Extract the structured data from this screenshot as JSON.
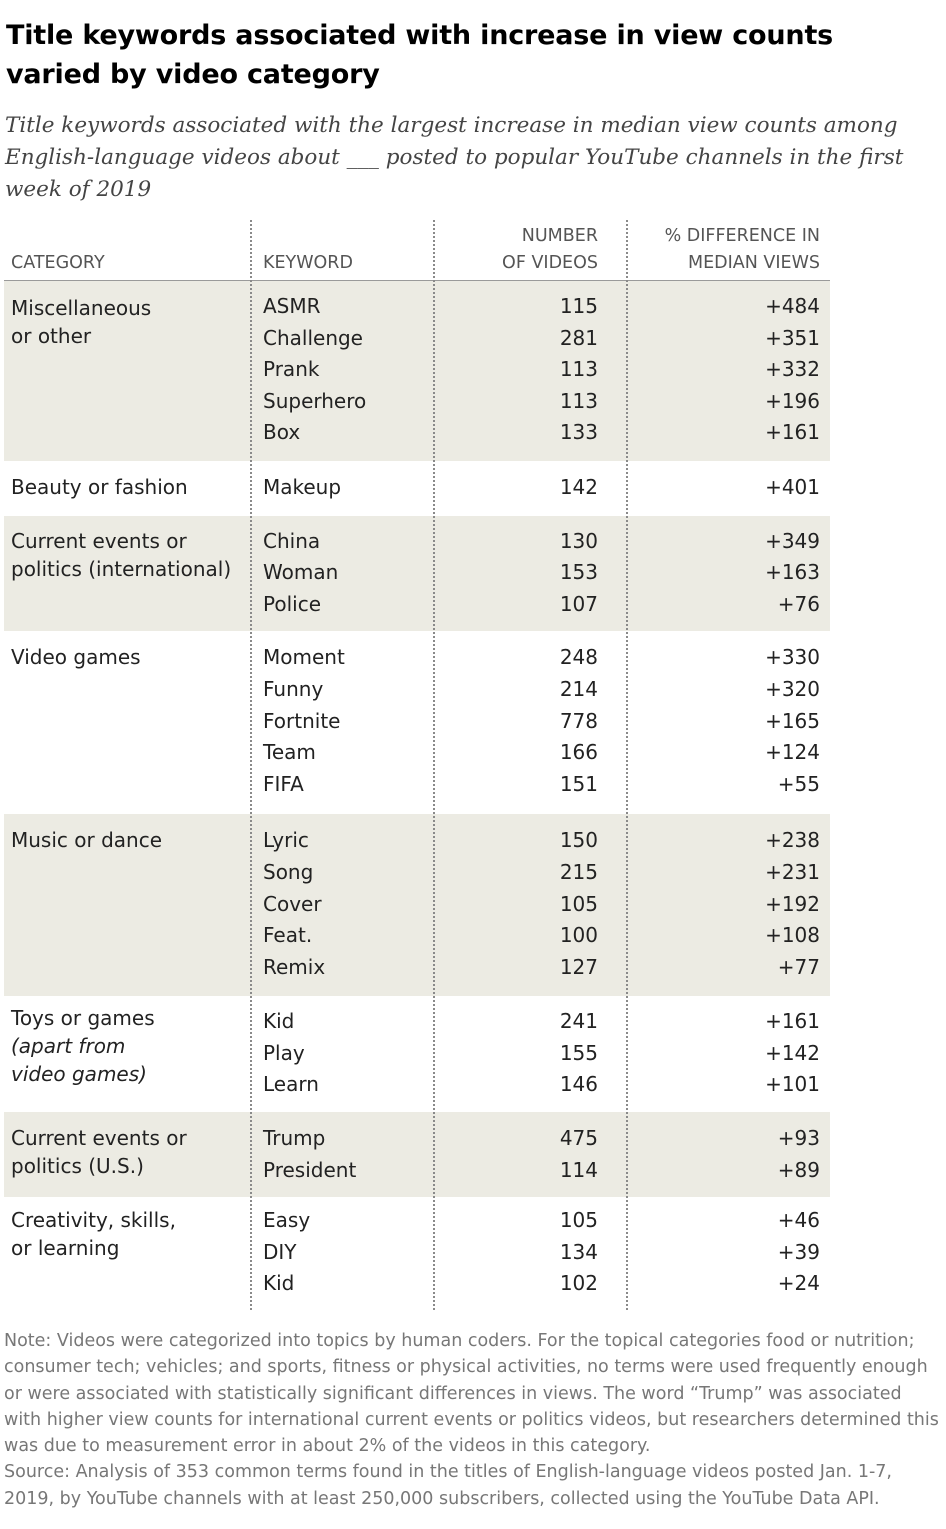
{
  "title": "Title keywords associated with increase in view counts varied by video category",
  "subtitle": "Title keywords associated with the largest increase in median view counts among English-language videos about ___ posted to popular YouTube channels in the first week of 2019",
  "headers": {
    "category": "CATEGORY",
    "keyword": "KEYWORD",
    "num_line1": "NUMBER",
    "num_line2": "OF VIDEOS",
    "diff_line1": "% DIFFERENCE IN",
    "diff_line2": "MEDIAN VIEWS"
  },
  "chart_data": {
    "type": "table",
    "columns": [
      "CATEGORY",
      "KEYWORD",
      "NUMBER OF VIDEOS",
      "% DIFFERENCE IN MEDIAN VIEWS"
    ],
    "groups": [
      {
        "category": [
          "Miscellaneous",
          "or other"
        ],
        "italic": [],
        "shaded": true,
        "rows": [
          {
            "keyword": "ASMR",
            "videos": "115",
            "diff": "+484"
          },
          {
            "keyword": "Challenge",
            "videos": "281",
            "diff": "+351"
          },
          {
            "keyword": "Prank",
            "videos": "113",
            "diff": "+332"
          },
          {
            "keyword": "Superhero",
            "videos": "113",
            "diff": "+196"
          },
          {
            "keyword": "Box",
            "videos": "133",
            "diff": "+161"
          }
        ]
      },
      {
        "category": [
          "Beauty or fashion"
        ],
        "italic": [],
        "shaded": false,
        "rows": [
          {
            "keyword": "Makeup",
            "videos": "142",
            "diff": "+401"
          }
        ]
      },
      {
        "category": [
          "Current events or",
          "politics (international)"
        ],
        "italic": [],
        "shaded": true,
        "rows": [
          {
            "keyword": "China",
            "videos": "130",
            "diff": "+349"
          },
          {
            "keyword": "Woman",
            "videos": "153",
            "diff": "+163"
          },
          {
            "keyword": "Police",
            "videos": "107",
            "diff": "+76"
          }
        ]
      },
      {
        "category": [
          "Video games"
        ],
        "italic": [],
        "shaded": false,
        "rows": [
          {
            "keyword": "Moment",
            "videos": "248",
            "diff": "+330"
          },
          {
            "keyword": "Funny",
            "videos": "214",
            "diff": "+320"
          },
          {
            "keyword": "Fortnite",
            "videos": "778",
            "diff": "+165"
          },
          {
            "keyword": "Team",
            "videos": "166",
            "diff": "+124"
          },
          {
            "keyword": "FIFA",
            "videos": "151",
            "diff": "+55"
          }
        ]
      },
      {
        "category": [
          "Music or dance"
        ],
        "italic": [],
        "shaded": true,
        "rows": [
          {
            "keyword": "Lyric",
            "videos": "150",
            "diff": "+238"
          },
          {
            "keyword": "Song",
            "videos": "215",
            "diff": "+231"
          },
          {
            "keyword": "Cover",
            "videos": "105",
            "diff": "+192"
          },
          {
            "keyword": "Feat.",
            "videos": "100",
            "diff": "+108"
          },
          {
            "keyword": "Remix",
            "videos": "127",
            "diff": "+77"
          }
        ]
      },
      {
        "category": [
          "Toys or games",
          "(apart from",
          "video games)"
        ],
        "italic": [
          1,
          2
        ],
        "shaded": false,
        "rows": [
          {
            "keyword": "Kid",
            "videos": "241",
            "diff": "+161"
          },
          {
            "keyword": "Play",
            "videos": "155",
            "diff": "+142"
          },
          {
            "keyword": "Learn",
            "videos": "146",
            "diff": "+101"
          }
        ]
      },
      {
        "category": [
          "Current events or",
          "politics (U.S.)"
        ],
        "italic": [],
        "shaded": true,
        "rows": [
          {
            "keyword": "Trump",
            "videos": "475",
            "diff": "+93"
          },
          {
            "keyword": "President",
            "videos": "114",
            "diff": "+89"
          }
        ]
      },
      {
        "category": [
          "Creativity, skills,",
          "or learning"
        ],
        "italic": [],
        "shaded": false,
        "rows": [
          {
            "keyword": "Easy",
            "videos": "105",
            "diff": "+46"
          },
          {
            "keyword": "DIY",
            "videos": "134",
            "diff": "+39"
          },
          {
            "keyword": "Kid",
            "videos": "102",
            "diff": "+24"
          }
        ]
      }
    ]
  },
  "note": "Note: Videos were categorized into topics by human coders. For the topical categories food or nutrition; consumer tech; vehicles; and sports, fitness or physical activities, no terms were used frequently enough or were associated with statistically significant differences in views. The word “Trump” was associated with higher view counts for international current events or politics videos, but researchers determined this was due to measurement error in about 2% of the videos in this category.",
  "source": "Source: Analysis of 353 common terms found in the titles of English-language videos posted Jan. 1-7, 2019, by YouTube channels with at least 250,000 subscribers, collected using the YouTube Data API."
}
